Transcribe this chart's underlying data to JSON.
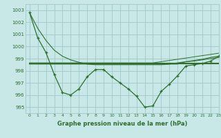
{
  "title": "Graphe pression niveau de la mer (hPa)",
  "bg_color": "#c8e8e8",
  "grid_color": "#a0c8c8",
  "line_color": "#2d6e2d",
  "xlim": [
    -0.5,
    23
  ],
  "ylim": [
    994.5,
    1003.5
  ],
  "yticks": [
    995,
    996,
    997,
    998,
    999,
    1000,
    1001,
    1002,
    1003
  ],
  "xticks": [
    0,
    1,
    2,
    3,
    4,
    5,
    6,
    7,
    8,
    9,
    10,
    11,
    12,
    13,
    14,
    15,
    16,
    17,
    18,
    19,
    20,
    21,
    22,
    23
  ],
  "series_actual": [
    1002.8,
    1000.7,
    999.5,
    997.7,
    996.2,
    996.0,
    996.5,
    997.5,
    998.1,
    998.1,
    997.5,
    997.0,
    996.5,
    995.9,
    995.0,
    995.1,
    996.3,
    996.9,
    997.6,
    998.4,
    998.5,
    998.6,
    998.8,
    999.2
  ],
  "series_avg": [
    998.6,
    998.6,
    998.6,
    998.6,
    998.6,
    998.6,
    998.6,
    998.6,
    998.6,
    998.6,
    998.6,
    998.6,
    998.6,
    998.6,
    998.6,
    998.6,
    998.6,
    998.6,
    998.6,
    998.6,
    998.6,
    998.6,
    998.6,
    998.6
  ],
  "series_min": [
    998.55,
    998.55,
    998.55,
    998.55,
    998.55,
    998.55,
    998.55,
    998.55,
    998.55,
    998.55,
    998.55,
    998.55,
    998.55,
    998.55,
    998.55,
    998.55,
    998.55,
    998.55,
    998.55,
    998.75,
    998.8,
    998.9,
    999.0,
    999.1
  ],
  "series_max": [
    998.65,
    998.65,
    998.65,
    998.65,
    998.65,
    998.65,
    998.65,
    998.65,
    998.65,
    998.65,
    998.65,
    998.65,
    998.65,
    998.65,
    998.65,
    998.65,
    998.75,
    998.85,
    998.95,
    999.05,
    999.15,
    999.25,
    999.35,
    999.45
  ],
  "series_trend": [
    1002.8,
    1001.5,
    1000.5,
    999.7,
    999.2,
    998.9,
    998.7,
    998.55,
    998.5,
    998.5,
    998.5,
    998.5,
    998.5,
    998.5,
    998.5,
    998.5,
    998.5,
    998.55,
    998.65,
    998.75,
    998.85,
    998.95,
    999.1,
    999.2
  ]
}
